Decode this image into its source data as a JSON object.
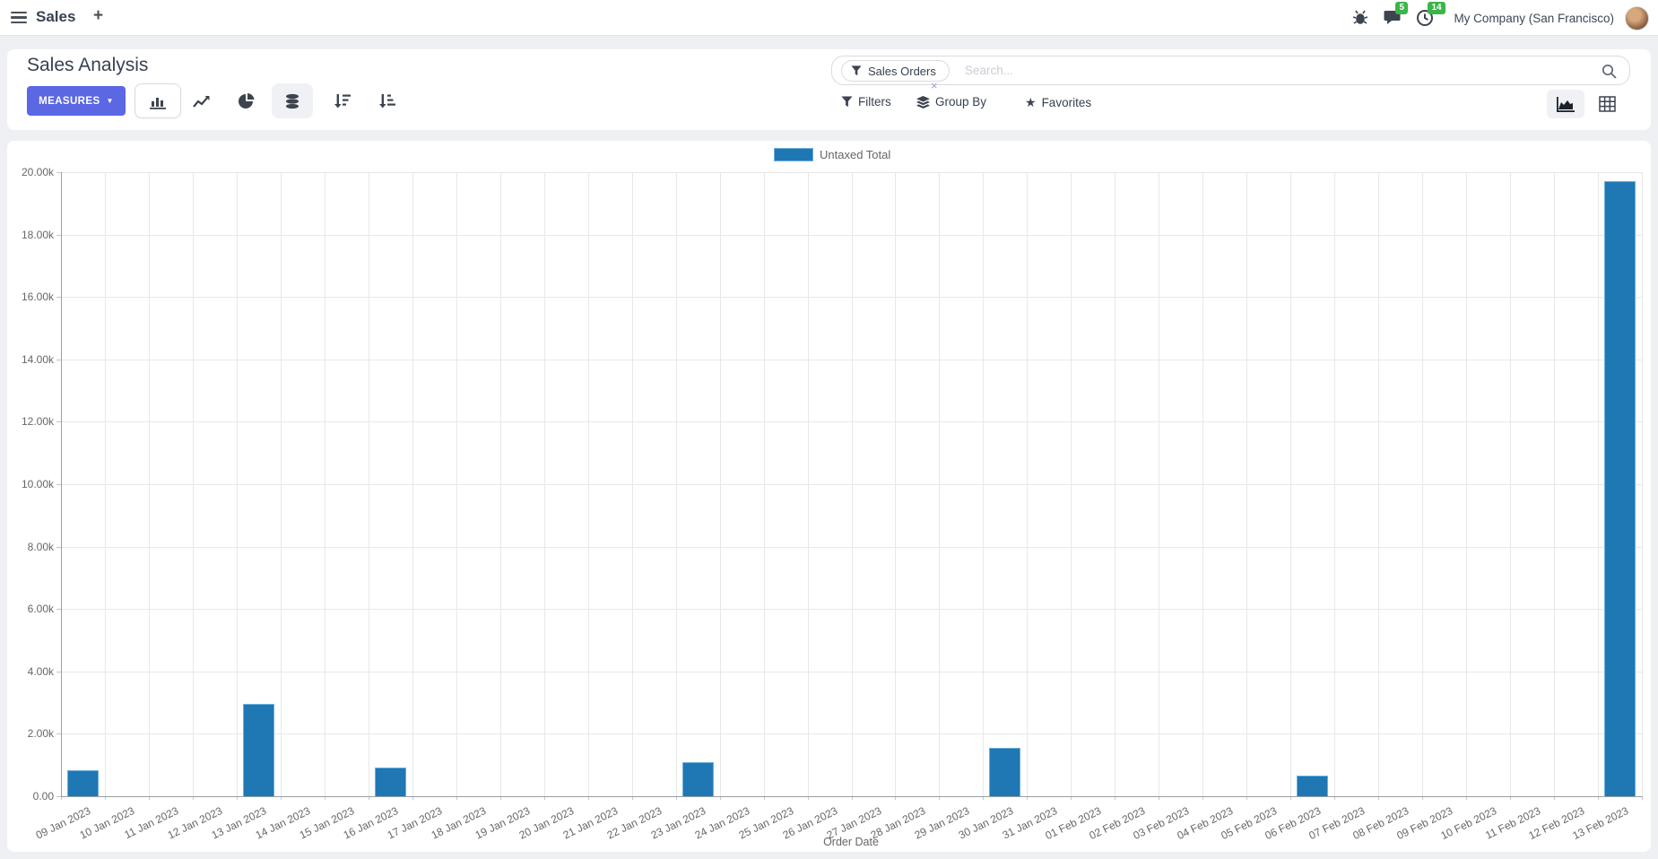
{
  "navbar": {
    "app_name": "Sales",
    "plus_label": "+",
    "messages_badge": "5",
    "activities_badge": "14",
    "company": "My Company (San Francisco)"
  },
  "control_panel": {
    "title": "Sales Analysis",
    "measures_label": "MEASURES",
    "caret": "▼",
    "search": {
      "facet": "Sales Orders",
      "placeholder": "Search...",
      "remove_label": "×"
    },
    "filters_label": "Filters",
    "groupby_label": "Group By",
    "favorites_label": "Favorites"
  },
  "icons": {
    "star": "★"
  },
  "colors": {
    "primary": "#5b67e3",
    "bar": "#1f77b4",
    "badge_green": "#3ab54a"
  },
  "chart_data": {
    "type": "bar",
    "title": "",
    "xlabel": "Order Date",
    "ylabel": "",
    "ylim": [
      0,
      20000
    ],
    "grid": true,
    "legend_position": "top",
    "y_ticks": [
      "0.00",
      "2.00k",
      "4.00k",
      "6.00k",
      "8.00k",
      "10.00k",
      "12.00k",
      "14.00k",
      "16.00k",
      "18.00k",
      "20.00k"
    ],
    "categories": [
      "09 Jan 2023",
      "10 Jan 2023",
      "11 Jan 2023",
      "12 Jan 2023",
      "13 Jan 2023",
      "14 Jan 2023",
      "15 Jan 2023",
      "16 Jan 2023",
      "17 Jan 2023",
      "18 Jan 2023",
      "19 Jan 2023",
      "20 Jan 2023",
      "21 Jan 2023",
      "22 Jan 2023",
      "23 Jan 2023",
      "24 Jan 2023",
      "25 Jan 2023",
      "26 Jan 2023",
      "27 Jan 2023",
      "28 Jan 2023",
      "29 Jan 2023",
      "30 Jan 2023",
      "31 Jan 2023",
      "01 Feb 2023",
      "02 Feb 2023",
      "03 Feb 2023",
      "04 Feb 2023",
      "05 Feb 2023",
      "06 Feb 2023",
      "07 Feb 2023",
      "08 Feb 2023",
      "09 Feb 2023",
      "10 Feb 2023",
      "11 Feb 2023",
      "12 Feb 2023",
      "13 Feb 2023"
    ],
    "series": [
      {
        "name": "Untaxed Total",
        "color": "#1f77b4",
        "values": [
          830,
          0,
          0,
          0,
          2950,
          0,
          0,
          930,
          0,
          0,
          0,
          0,
          0,
          0,
          1090,
          0,
          0,
          0,
          0,
          0,
          0,
          1560,
          0,
          0,
          0,
          0,
          0,
          0,
          660,
          0,
          0,
          0,
          0,
          0,
          0,
          19700
        ]
      }
    ]
  }
}
